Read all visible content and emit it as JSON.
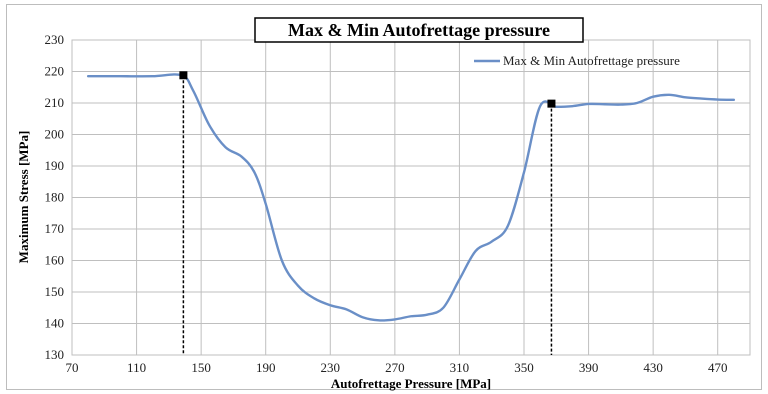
{
  "chart_data": {
    "type": "line",
    "title": "Max & Min Autofrettage pressure",
    "xlabel": "Autofrettage Pressure  [MPa]",
    "ylabel": "Maximum Stress [MPa]",
    "xlim": [
      70,
      490
    ],
    "ylim": [
      130,
      230
    ],
    "xticks": [
      70,
      110,
      150,
      190,
      230,
      270,
      310,
      350,
      390,
      430,
      470
    ],
    "yticks": [
      130,
      140,
      150,
      160,
      170,
      180,
      190,
      200,
      210,
      220,
      230
    ],
    "grid": true,
    "legend_position": "top-right",
    "series": [
      {
        "name": "Max & Min Autofrettage pressure",
        "color": "#6a8fc7",
        "x": [
          80,
          100,
          120,
          138,
          145,
          155,
          165,
          175,
          183,
          190,
          200,
          210,
          220,
          230,
          240,
          250,
          260,
          270,
          280,
          290,
          300,
          310,
          320,
          330,
          340,
          350,
          360,
          370,
          380,
          390,
          400,
          410,
          420,
          430,
          440,
          450,
          460,
          470,
          480
        ],
        "y": [
          218.5,
          218.5,
          218.5,
          218.8,
          214,
          203,
          196,
          193,
          188,
          178,
          160,
          152,
          148,
          145.8,
          144.5,
          142,
          141,
          141.3,
          142.3,
          142.8,
          145,
          154,
          163,
          166,
          171,
          188,
          209,
          208.8,
          209,
          209.7,
          209.6,
          209.5,
          210,
          212,
          212.6,
          211.8,
          211.4,
          211.1,
          211
        ]
      }
    ],
    "markers": [
      {
        "x": 139,
        "y": 218.8
      },
      {
        "x": 367,
        "y": 209.8
      }
    ]
  }
}
